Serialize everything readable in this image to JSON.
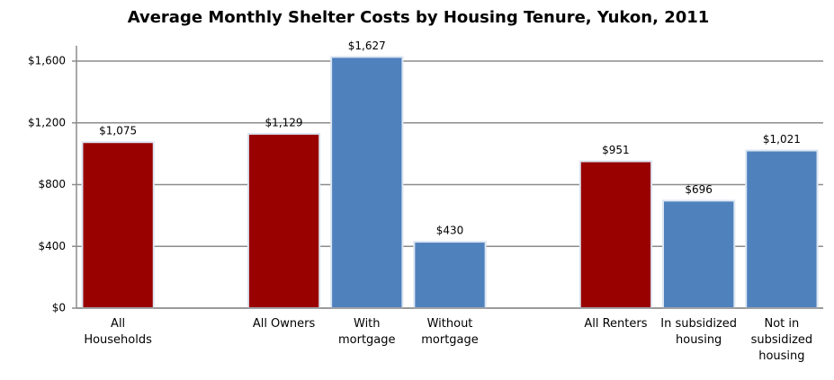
{
  "chart_data": {
    "type": "bar",
    "title": "Average Monthly Shelter Costs by Housing Tenure, Yukon, 2011",
    "categories": [
      "All Households",
      null,
      "All Owners",
      "With mortgage",
      "Without mortgage",
      null,
      "All Renters",
      "In subsidized housing",
      "Not in subsidized housing"
    ],
    "values": [
      1075,
      null,
      1129,
      1627,
      430,
      null,
      951,
      696,
      1021
    ],
    "value_labels": [
      "$1,075",
      null,
      "$1,129",
      "$1,627",
      "$430",
      null,
      "$951",
      "$696",
      "$1,021"
    ],
    "colors": [
      "#990000",
      null,
      "#990000",
      "#4f81bd",
      "#4f81bd",
      null,
      "#990000",
      "#4f81bd",
      "#4f81bd"
    ],
    "ylim": [
      0,
      1700
    ],
    "yticks": [
      {
        "value": 0,
        "label": "$0"
      },
      {
        "value": 400,
        "label": "$400"
      },
      {
        "value": 800,
        "label": "$800"
      },
      {
        "value": 1200,
        "label": "$1,200"
      },
      {
        "value": 1600,
        "label": "$1,600"
      }
    ],
    "grid": true
  }
}
